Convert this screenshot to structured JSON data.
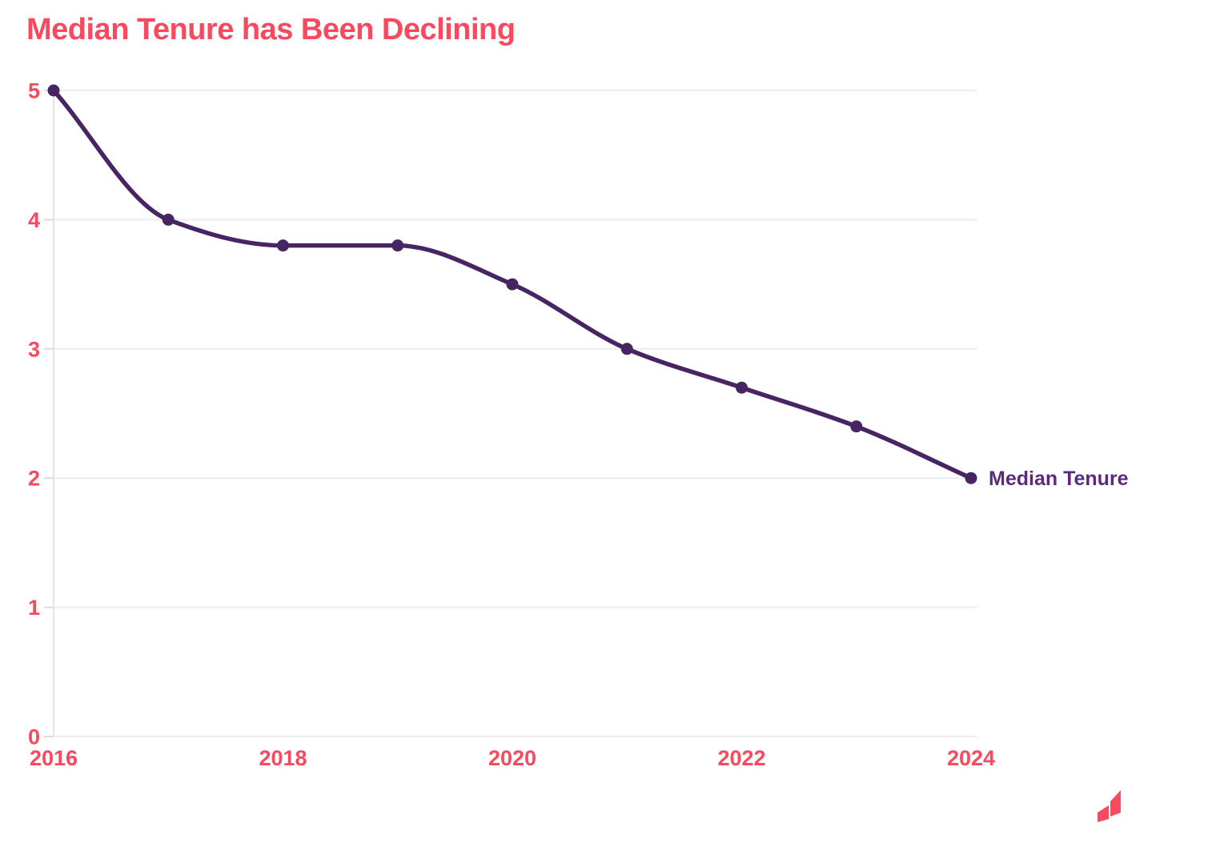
{
  "title": {
    "text": "Median Tenure has Been Declining",
    "color": "#F8495E"
  },
  "chart_data": {
    "type": "line",
    "title": "Median Tenure has Been Declining",
    "x": [
      2016,
      2017,
      2018,
      2019,
      2020,
      2021,
      2022,
      2023,
      2024
    ],
    "series": [
      {
        "name": "Median Tenure",
        "values": [
          5,
          4,
          3.8,
          3.8,
          3.5,
          3,
          2.7,
          2.4,
          2
        ],
        "color": "#462562",
        "label_color": "#5A2A7C"
      }
    ],
    "xticks": [
      2016,
      2018,
      2020,
      2022,
      2024
    ],
    "yticks": [
      0,
      1,
      2,
      3,
      4,
      5
    ],
    "ylim": [
      0,
      5
    ],
    "xlabel": "",
    "ylabel": "",
    "grid": "horizontal-only",
    "gridline_color": "#EDEDED",
    "axis_line_color": "#E4E4E4",
    "tick_mark_color": "#DCDCDC",
    "tick_label_color": "#F8495E",
    "curve": "smooth-monotone",
    "legend_position": "end-of-line-label",
    "end_label": "Median Tenure"
  },
  "logo": {
    "icon": "brand-mark",
    "color": "#F8495E"
  }
}
